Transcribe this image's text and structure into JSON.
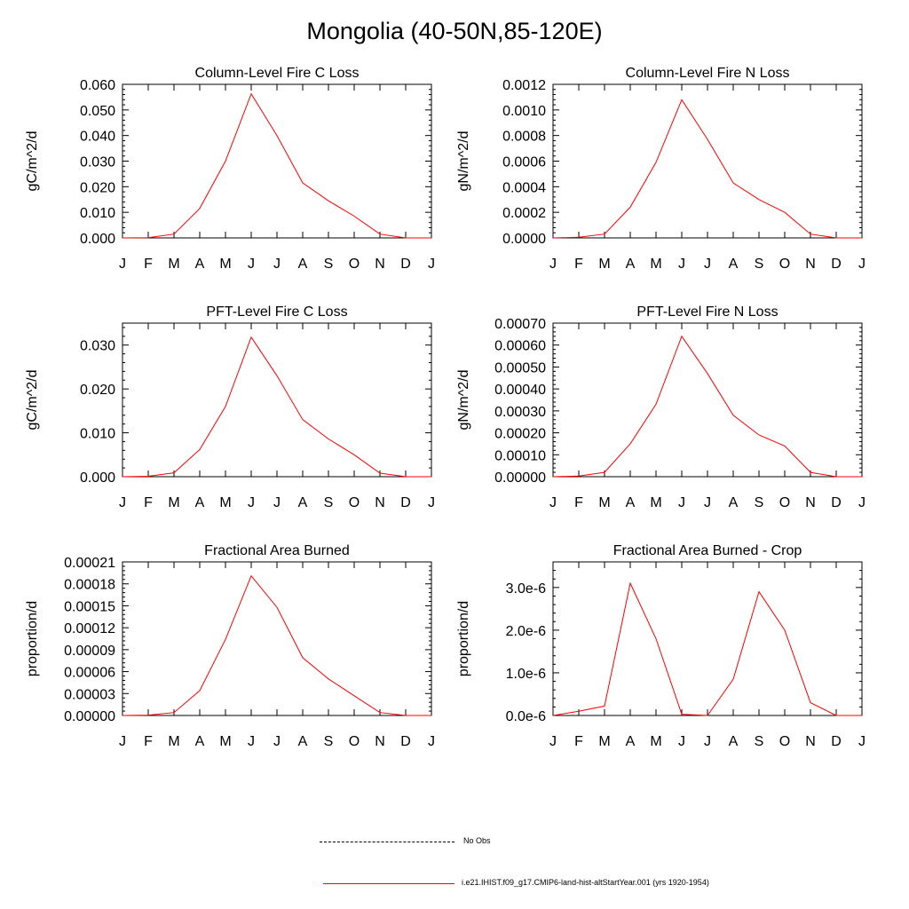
{
  "page": {
    "title": "Mongolia (40-50N,85-120E)"
  },
  "colors": {
    "model_line": "#ff0000",
    "obs_line": "#000000",
    "axis": "#000000"
  },
  "legend": {
    "obs_label": "No Obs",
    "model_label": "i.e21.IHIST.f09_g17.CMIP6-land-hist-altStartYear.001 (yrs 1920-1954)"
  },
  "chart_data": [
    {
      "type": "line",
      "title": "Column-Level Fire C Loss",
      "ylabel": "gC/m^2/d",
      "xlabel": "",
      "categories": [
        "J",
        "F",
        "M",
        "A",
        "M",
        "J",
        "J",
        "A",
        "S",
        "O",
        "N",
        "D",
        "J"
      ],
      "ylim": [
        0,
        0.06
      ],
      "yticks": [
        "0.000",
        "0.010",
        "0.020",
        "0.030",
        "0.040",
        "0.050",
        "0.060"
      ],
      "grid": false,
      "series": [
        {
          "values": [
            0,
            0.0001,
            0.0015,
            0.0115,
            0.03,
            0.0563,
            0.04,
            0.0215,
            0.0145,
            0.0085,
            0.0015,
            0,
            0
          ]
        }
      ]
    },
    {
      "type": "line",
      "title": "Column-Level Fire N Loss",
      "ylabel": "gN/m^2/d",
      "xlabel": "",
      "categories": [
        "J",
        "F",
        "M",
        "A",
        "M",
        "J",
        "J",
        "A",
        "S",
        "O",
        "N",
        "D",
        "J"
      ],
      "ylim": [
        0,
        0.0012
      ],
      "yticks": [
        "0.0000",
        "0.0002",
        "0.0004",
        "0.0006",
        "0.0008",
        "0.0010",
        "0.0012"
      ],
      "grid": false,
      "series": [
        {
          "values": [
            0,
            5e-06,
            3e-05,
            0.00024,
            0.00059,
            0.00108,
            0.00077,
            0.00043,
            0.0003,
            0.0002,
            3e-05,
            0,
            0
          ]
        }
      ]
    },
    {
      "type": "line",
      "title": "PFT-Level Fire C Loss",
      "ylabel": "gC/m^2/d",
      "xlabel": "",
      "categories": [
        "J",
        "F",
        "M",
        "A",
        "M",
        "J",
        "J",
        "A",
        "S",
        "O",
        "N",
        "D",
        "J"
      ],
      "ylim": [
        0,
        0.035
      ],
      "yticks": [
        "0.000",
        "0.010",
        "0.020",
        "0.030"
      ],
      "ytick_values": [
        0,
        0.01,
        0.02,
        0.03
      ],
      "grid": false,
      "series": [
        {
          "values": [
            0,
            0.0001,
            0.0009,
            0.0062,
            0.016,
            0.0318,
            0.023,
            0.013,
            0.0086,
            0.005,
            0.0008,
            0,
            0
          ]
        }
      ]
    },
    {
      "type": "line",
      "title": "PFT-Level Fire N Loss",
      "ylabel": "gN/m^2/d",
      "xlabel": "",
      "categories": [
        "J",
        "F",
        "M",
        "A",
        "M",
        "J",
        "J",
        "A",
        "S",
        "O",
        "N",
        "D",
        "J"
      ],
      "ylim": [
        0,
        0.0007
      ],
      "yticks": [
        "0.00000",
        "0.00010",
        "0.00020",
        "0.00030",
        "0.00040",
        "0.00050",
        "0.00060",
        "0.00070"
      ],
      "grid": false,
      "series": [
        {
          "values": [
            0,
            3e-06,
            2e-05,
            0.00015,
            0.00033,
            0.00064,
            0.00047,
            0.00028,
            0.00019,
            0.00014,
            2e-05,
            0,
            0
          ]
        }
      ]
    },
    {
      "type": "line",
      "title": "Fractional Area Burned",
      "ylabel": "proportion/d",
      "xlabel": "",
      "categories": [
        "J",
        "F",
        "M",
        "A",
        "M",
        "J",
        "J",
        "A",
        "S",
        "O",
        "N",
        "D",
        "J"
      ],
      "ylim": [
        0,
        0.00021
      ],
      "yticks": [
        "0.00000",
        "0.00003",
        "0.00006",
        "0.00009",
        "0.00012",
        "0.00015",
        "0.00018",
        "0.00021"
      ],
      "grid": false,
      "series": [
        {
          "values": [
            0,
            5e-07,
            4e-06,
            3.4e-05,
            0.000104,
            0.000191,
            0.000148,
            7.9e-05,
            5e-05,
            2.7e-05,
            4e-06,
            0,
            0
          ]
        }
      ]
    },
    {
      "type": "line",
      "title": "Fractional Area Burned - Crop",
      "ylabel": "proportion/d",
      "xlabel": "",
      "categories": [
        "J",
        "F",
        "M",
        "A",
        "M",
        "J",
        "J",
        "A",
        "S",
        "O",
        "N",
        "D",
        "J"
      ],
      "ylim": [
        0,
        3.6e-06
      ],
      "yticks": [
        "0.0e-6",
        "1.0e-6",
        "2.0e-6",
        "3.0e-6"
      ],
      "ytick_values": [
        0,
        1e-06,
        2e-06,
        3e-06
      ],
      "grid": false,
      "series": [
        {
          "values": [
            0,
            1e-07,
            2.2e-07,
            3.1e-06,
            1.8e-06,
            3e-08,
            0,
            8.5e-07,
            2.9e-06,
            2e-06,
            3e-07,
            0,
            0
          ]
        }
      ]
    }
  ]
}
